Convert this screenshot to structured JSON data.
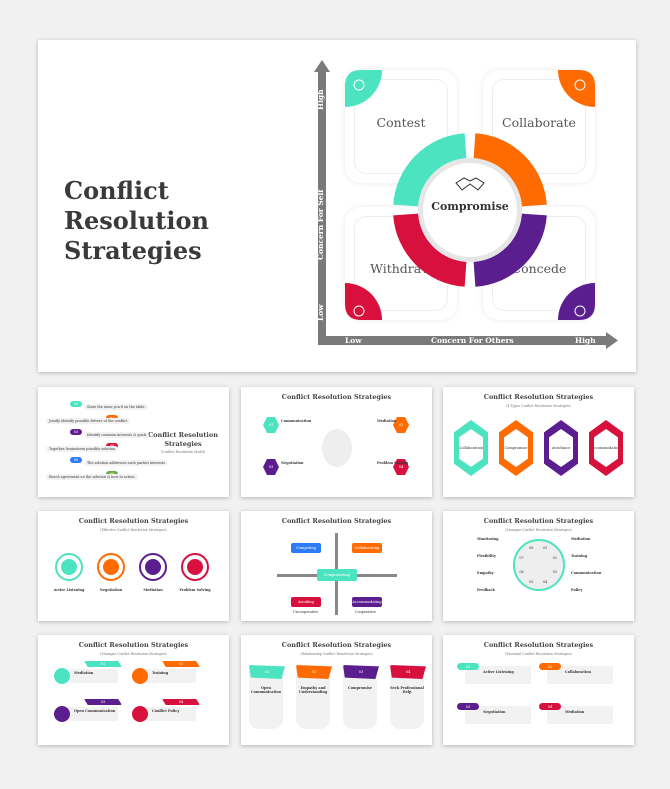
{
  "colors": {
    "teal": "#4ce3c1",
    "orange": "#ff6b00",
    "red": "#d7103e",
    "purple": "#5b1e8e",
    "blue": "#2e7bf6",
    "green": "#6bab3c",
    "axis": "#7a7a7a"
  },
  "main": {
    "title": "Conflict Resolution Strategies",
    "center": "Compromise",
    "center_icon": "handshake-icon",
    "quadrants": [
      {
        "label": "Contest",
        "icon": "trophy-icon",
        "color": "teal"
      },
      {
        "label": "Collaborate",
        "icon": "puzzle-hands-icon",
        "color": "orange"
      },
      {
        "label": "Withdraw",
        "icon": "clasped-hands-icon",
        "color": "red"
      },
      {
        "label": "Concede",
        "icon": "agreement-icon",
        "color": "purple"
      }
    ],
    "y_axis": {
      "label": "Concern For Self",
      "low": "Low",
      "high": "High"
    },
    "x_axis": {
      "label": "Concern For Others",
      "low": "Low",
      "high": "High"
    }
  },
  "thumbnails": [
    {
      "title": "Conflict Resolution Strategies",
      "subtitle": "(Conflict Resolution Model)",
      "items": [
        "State the issue you'd on the table",
        "Jointly identify possible drivers of the conflict",
        "Identify common interests & goals",
        "Together, brainstorm possible solution",
        "The solution addresses each parties interests",
        "Reach agreement on the solution & how to action"
      ],
      "numbers": [
        "01",
        "02",
        "03",
        "04",
        "05",
        "06"
      ]
    },
    {
      "title": "Conflict Resolution Strategies",
      "items": [
        "Communication",
        "Mediation",
        "Negotiation",
        "Problem Solving"
      ],
      "numbers": [
        "01",
        "02",
        "03",
        "04"
      ]
    },
    {
      "title": "Conflict Resolution Strategies",
      "subtitle": "(4 Types Conflict Resolution Strategies)",
      "items": [
        "Collaboration",
        "Compromise",
        "Avoidance",
        "Accommodation"
      ]
    },
    {
      "title": "Conflict Resolution Strategies",
      "subtitle": "(Effective Conflict Resolution Strategies)",
      "items": [
        "Active Listening",
        "Negotiation",
        "Mediation",
        "Problem Solving"
      ]
    },
    {
      "title": "Conflict Resolution Strategies",
      "items": [
        "Competing",
        "Collaborating",
        "Compromising",
        "Avoiding",
        "Accommodating"
      ],
      "axis": [
        "Uncooperative",
        "Cooperative"
      ]
    },
    {
      "title": "Conflict Resolution Strategies",
      "subtitle": "(Manager Conflict Resolution Strategies)",
      "items": [
        "Mediation",
        "Training",
        "Communication",
        "Policy",
        "Feedback",
        "Empathy",
        "Flexibility",
        "Monitoring"
      ],
      "numbers": [
        "01",
        "02",
        "03",
        "04",
        "05",
        "06",
        "07",
        "08"
      ]
    },
    {
      "title": "Conflict Resolution Strategies",
      "subtitle": "(Manager Conflict Resolution Strategies)",
      "items": [
        "Mediation",
        "Training",
        "Open Communication",
        "Conflict Policy"
      ],
      "numbers": [
        "01",
        "02",
        "03",
        "04"
      ]
    },
    {
      "title": "Conflict Resolution Strategies",
      "subtitle": "(Relationship Conflict Resolution Strategies)",
      "items": [
        "Open Communication",
        "Empathy and Understanding",
        "Compromise",
        "Seek Professional Help"
      ],
      "numbers": [
        "01",
        "02",
        "03",
        "04"
      ]
    },
    {
      "title": "Conflict Resolution Strategies",
      "subtitle": "(Essential Conflict Resolution Strategies)",
      "items": [
        "Active Listening",
        "Collaboration",
        "Negotiation",
        "Mediation"
      ],
      "numbers": [
        "01",
        "02",
        "03",
        "04"
      ]
    }
  ]
}
